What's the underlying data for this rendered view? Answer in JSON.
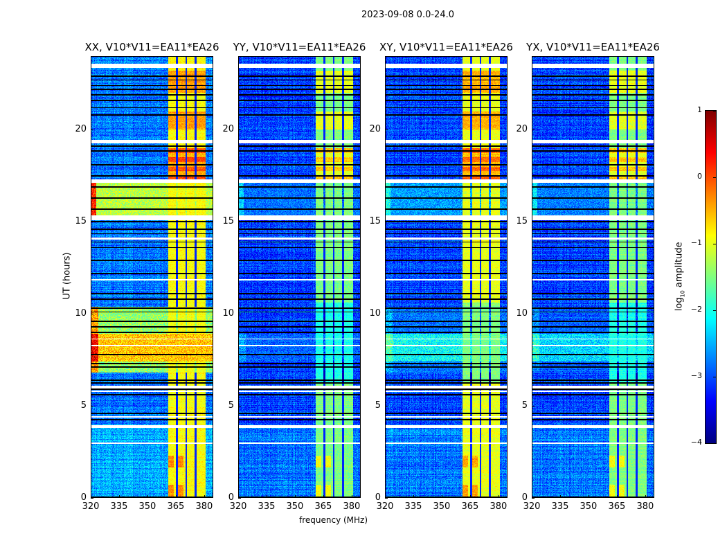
{
  "suptitle": "2023-09-08 0.0-24.0",
  "chart_data": {
    "type": "heatmap",
    "title": "2023-09-08 0.0-24.0",
    "xlabel": "frequency (MHz)",
    "ylabel": "UT (hours)",
    "xlim": [
      320,
      384.8
    ],
    "ylim": [
      0,
      24
    ],
    "xticks": [
      "320",
      "335",
      "350",
      "365",
      "380"
    ],
    "yticks": [
      "0",
      "5",
      "10",
      "15",
      "20"
    ],
    "colorbar": {
      "label": "log10 amplitude",
      "label_main": "log",
      "label_sub": "10",
      "label_rest": " amplitude",
      "range": [
        -4,
        1
      ],
      "ticks": [
        "1",
        "0",
        "−1",
        "−2",
        "−3",
        "−4"
      ],
      "colormap": "jet"
    },
    "panels": [
      {
        "title": "XX, V10*V11=EA11*EA26",
        "pol": "XX",
        "band_level": -0.9,
        "rfi_level": -0.6,
        "rfi2_level": -1.2
      },
      {
        "title": "YY, V10*V11=EA11*EA26",
        "pol": "YY",
        "band_level": -1.5,
        "rfi_level": -3.0,
        "rfi2_level": -2.9
      },
      {
        "title": "XY, V10*V11=EA11*EA26",
        "pol": "XY",
        "band_level": -1.0,
        "rfi_level": -2.1,
        "rfi2_level": -2.6
      },
      {
        "title": "YX, V10*V11=EA11*EA26",
        "pol": "YX",
        "band_level": -1.5,
        "rfi_level": -2.3,
        "rfi2_level": -2.8
      }
    ],
    "bright_band_mhz": [
      361,
      380.8
    ],
    "band_dark_channels_mhz": [
      365.6,
      370.6,
      375.5
    ],
    "flagged_gaps_hours": [
      [
        23.35,
        23.6
      ],
      [
        19.25,
        19.45
      ],
      [
        17.1,
        17.3
      ],
      [
        15.1,
        15.35
      ],
      [
        14.05,
        14.15
      ],
      [
        5.95,
        6.1
      ],
      [
        5.75,
        5.82
      ],
      [
        4.35,
        4.45
      ],
      [
        3.8,
        3.95
      ],
      [
        2.95,
        3.0
      ],
      [
        11.8,
        11.9
      ],
      [
        8.6,
        8.65
      ],
      [
        8.25,
        8.3
      ]
    ],
    "dark_lines_hours": [
      22.9,
      22.7,
      22.4,
      22.2,
      21.9,
      21.6,
      21.2,
      20.8,
      19.1,
      18.85,
      18.1,
      17.5,
      16.9,
      16.3,
      15.7,
      15.0,
      14.6,
      14.35,
      13.9,
      13.6,
      12.9,
      12.2,
      11.1,
      10.8,
      10.3,
      10.1,
      9.6,
      9.3,
      9.0,
      7.8,
      7.3,
      7.1,
      6.4,
      6.25,
      5.9,
      5.6,
      4.6,
      4.25,
      0.05
    ],
    "rfi_hours": [
      6.8,
      10.4
    ],
    "rfi2_hours": [
      15.1,
      17.1
    ]
  }
}
